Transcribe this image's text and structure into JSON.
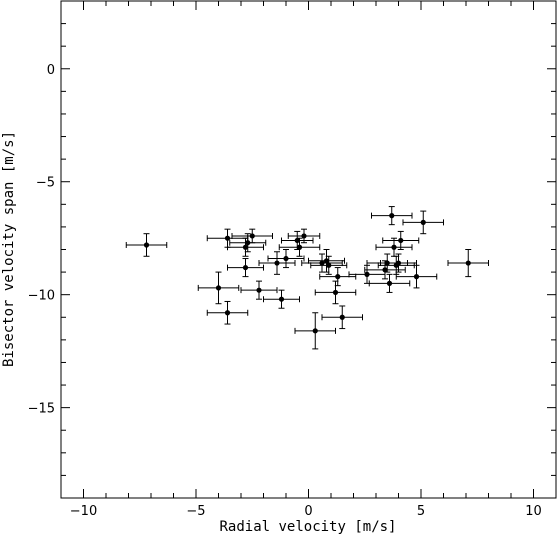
{
  "chart_data": {
    "type": "scatter",
    "xlabel": "Radial velocity [m/s]",
    "ylabel": "Bisector velocity span [m/s]",
    "xlim": [
      -11,
      11
    ],
    "ylim": [
      -19,
      3
    ],
    "xticks": [
      -10,
      -5,
      0,
      5,
      10
    ],
    "yticks": [
      0,
      -5,
      -10,
      -15
    ],
    "minor_step": 1,
    "grid": false,
    "colors": {
      "points": "#000000",
      "axes": "#000000",
      "background": "#ffffff"
    },
    "points": [
      {
        "x": -7.2,
        "y": -7.8,
        "xerr": 0.9,
        "yerr": 0.5
      },
      {
        "x": -4.0,
        "y": -9.7,
        "xerr": 0.9,
        "yerr": 0.7
      },
      {
        "x": -3.6,
        "y": -10.8,
        "xerr": 0.9,
        "yerr": 0.5
      },
      {
        "x": -3.6,
        "y": -7.5,
        "xerr": 0.9,
        "yerr": 0.4
      },
      {
        "x": -2.8,
        "y": -8.8,
        "xerr": 0.8,
        "yerr": 0.4
      },
      {
        "x": -2.8,
        "y": -7.9,
        "xerr": 0.8,
        "yerr": 0.4
      },
      {
        "x": -2.7,
        "y": -7.7,
        "xerr": 0.8,
        "yerr": 0.4
      },
      {
        "x": -2.5,
        "y": -7.4,
        "xerr": 0.9,
        "yerr": 0.3
      },
      {
        "x": -2.2,
        "y": -9.8,
        "xerr": 0.8,
        "yerr": 0.4
      },
      {
        "x": -1.4,
        "y": -8.6,
        "xerr": 0.8,
        "yerr": 0.5
      },
      {
        "x": -1.2,
        "y": -10.2,
        "xerr": 0.8,
        "yerr": 0.4
      },
      {
        "x": -1.0,
        "y": -8.4,
        "xerr": 0.8,
        "yerr": 0.4
      },
      {
        "x": -0.5,
        "y": -7.6,
        "xerr": 0.7,
        "yerr": 0.4
      },
      {
        "x": -0.4,
        "y": -7.9,
        "xerr": 0.9,
        "yerr": 0.4
      },
      {
        "x": -0.2,
        "y": -7.4,
        "xerr": 0.7,
        "yerr": 0.3
      },
      {
        "x": 0.3,
        "y": -11.6,
        "xerr": 0.9,
        "yerr": 0.8
      },
      {
        "x": 0.6,
        "y": -8.6,
        "xerr": 0.9,
        "yerr": 0.4
      },
      {
        "x": 0.8,
        "y": -8.5,
        "xerr": 0.8,
        "yerr": 0.5
      },
      {
        "x": 0.9,
        "y": -8.7,
        "xerr": 0.8,
        "yerr": 0.4
      },
      {
        "x": 1.2,
        "y": -9.9,
        "xerr": 0.9,
        "yerr": 0.5
      },
      {
        "x": 1.3,
        "y": -9.2,
        "xerr": 0.8,
        "yerr": 0.4
      },
      {
        "x": 1.5,
        "y": -11.0,
        "xerr": 0.9,
        "yerr": 0.5
      },
      {
        "x": 2.6,
        "y": -9.1,
        "xerr": 0.8,
        "yerr": 0.4
      },
      {
        "x": 3.4,
        "y": -8.9,
        "xerr": 0.9,
        "yerr": 0.4
      },
      {
        "x": 3.5,
        "y": -8.6,
        "xerr": 0.9,
        "yerr": 0.4
      },
      {
        "x": 3.6,
        "y": -9.5,
        "xerr": 0.9,
        "yerr": 0.4
      },
      {
        "x": 3.7,
        "y": -6.5,
        "xerr": 0.9,
        "yerr": 0.4
      },
      {
        "x": 3.8,
        "y": -7.9,
        "xerr": 0.8,
        "yerr": 0.4
      },
      {
        "x": 3.9,
        "y": -8.7,
        "xerr": 0.8,
        "yerr": 0.4
      },
      {
        "x": 4.0,
        "y": -8.6,
        "xerr": 0.8,
        "yerr": 0.4
      },
      {
        "x": 4.1,
        "y": -7.6,
        "xerr": 0.8,
        "yerr": 0.4
      },
      {
        "x": 4.8,
        "y": -9.2,
        "xerr": 0.9,
        "yerr": 0.5
      },
      {
        "x": 5.1,
        "y": -6.8,
        "xerr": 0.9,
        "yerr": 0.5
      },
      {
        "x": 7.1,
        "y": -8.6,
        "xerr": 0.9,
        "yerr": 0.6
      }
    ]
  }
}
